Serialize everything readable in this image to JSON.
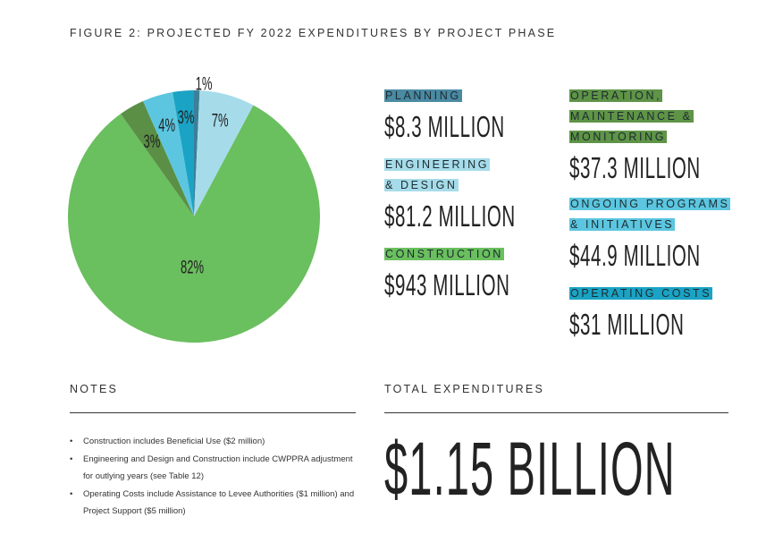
{
  "title": "FIGURE 2: PROJECTED FY 2022 EXPENDITURES BY PROJECT PHASE",
  "chart_data": {
    "type": "pie",
    "title": "FIGURE 2: PROJECTED FY 2022 EXPENDITURES BY PROJECT PHASE",
    "unit": "$ million",
    "slices": [
      {
        "name": "PLANNING",
        "value": 8.3,
        "label": "1%",
        "color": "#3d7f99"
      },
      {
        "name": "ENGINEERING & DESIGN",
        "value": 81.2,
        "label": "7%",
        "color": "#a6dcea"
      },
      {
        "name": "CONSTRUCTION",
        "value": 943,
        "label": "82%",
        "color": "#6abf5e"
      },
      {
        "name": "OPERATION, MAINTENANCE & MONITORING",
        "value": 37.3,
        "label": "3%",
        "color": "#5a8f45"
      },
      {
        "name": "ONGOING PROGRAMS & INITIATIVES",
        "value": 44.9,
        "label": "4%",
        "color": "#5cc6e0"
      },
      {
        "name": "OPERATING COSTS",
        "value": 31,
        "label": "3%",
        "color": "#1aa3c4"
      }
    ],
    "start": "top",
    "direction": "clockwise"
  },
  "legend": [
    {
      "label": "PLANNING",
      "amount": "$8.3 MILLION",
      "color": "#4a8aa3"
    },
    {
      "label": "ENGINEERING & DESIGN",
      "amount": "$81.2 MILLION",
      "color": "#a6dcea"
    },
    {
      "label": "CONSTRUCTION",
      "amount": "$943 MILLION",
      "color": "#6abf5e"
    },
    {
      "label": "OPERATION, MAINTENANCE & MONITORING",
      "amount": "$37.3 MILLION",
      "color": "#5f9447"
    },
    {
      "label": "ONGOING PROGRAMS & INITIATIVES",
      "amount": "$44.9 MILLION",
      "color": "#5cc6e0"
    },
    {
      "label": "OPERATING COSTS",
      "amount": "$31 MILLION",
      "color": "#1aa3c4"
    }
  ],
  "notes": {
    "heading": "NOTES",
    "items": [
      "Construction includes Beneficial Use ($2 million)",
      "Engineering and Design and Construction include CWPPRA adjustment for outlying years (see Table 12)",
      "Operating Costs include Assistance to Levee Authorities ($1 million) and Project Support ($5 million)"
    ]
  },
  "total": {
    "heading": "TOTAL EXPENDITURES",
    "value": "$1.15 BILLION"
  }
}
